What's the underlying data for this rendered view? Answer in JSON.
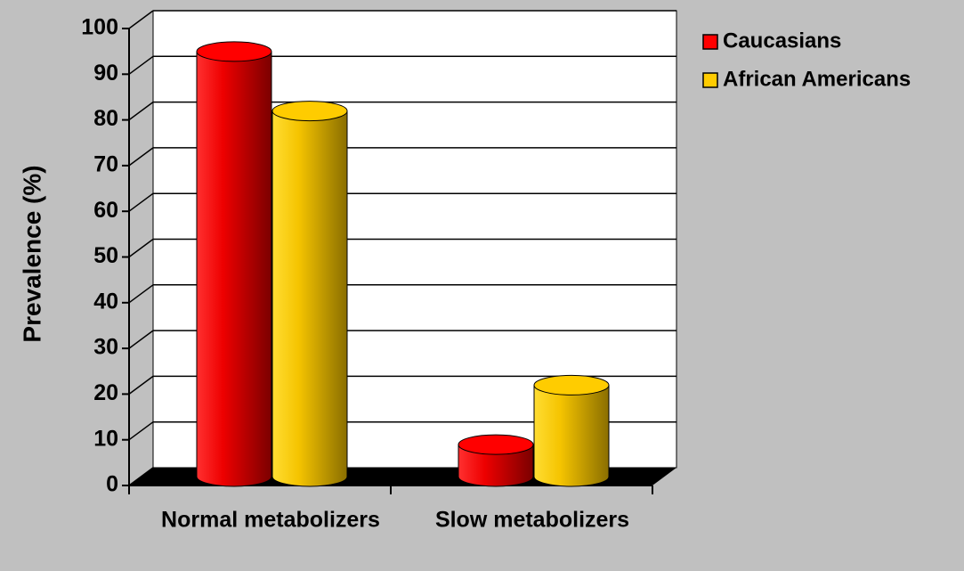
{
  "chart_data": {
    "type": "bar",
    "y_label": "Prevalence (%)",
    "categories": [
      "Normal metabolizers",
      "Slow metabolizers"
    ],
    "series": [
      {
        "name": "Caucasians",
        "color": "#ff0000",
        "values": [
          93,
          7
        ]
      },
      {
        "name": "African Americans",
        "color": "#ffcc00",
        "values": [
          80,
          20
        ]
      }
    ],
    "ylim": [
      0,
      100
    ],
    "yticks": [
      0,
      10,
      20,
      30,
      40,
      50,
      60,
      70,
      80,
      90,
      100
    ],
    "grid": true,
    "legend": "top-right"
  }
}
